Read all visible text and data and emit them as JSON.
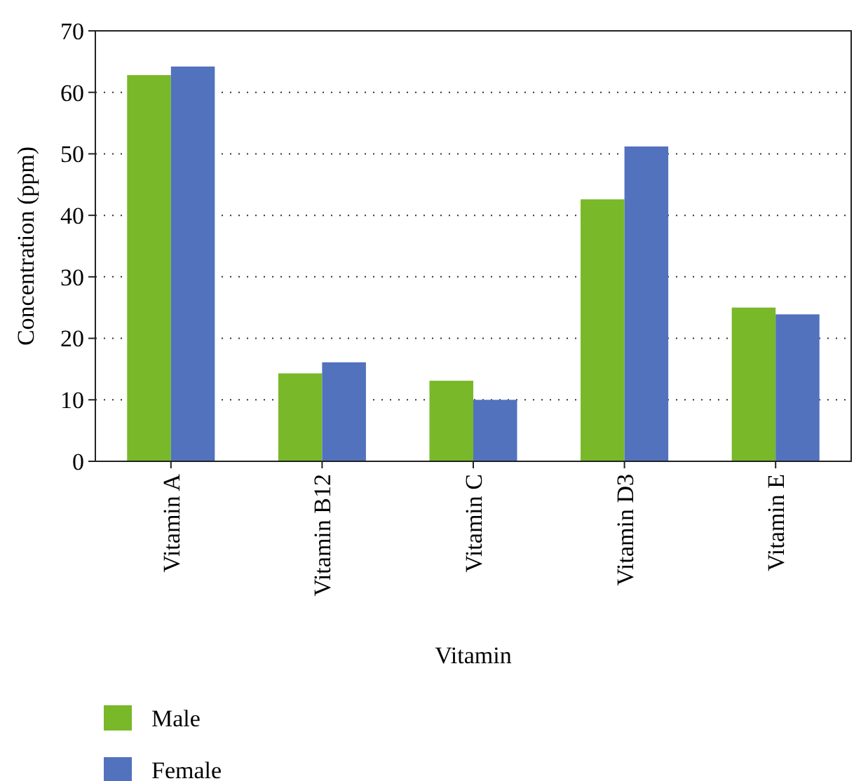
{
  "chart_data": {
    "type": "bar",
    "xlabel": "Vitamin",
    "ylabel": "Concentration (ppm)",
    "categories": [
      "Vitamin A",
      "Vitamin B12",
      "Vitamin C",
      "Vitamin D3",
      "Vitamin E"
    ],
    "series": [
      {
        "name": "Male",
        "color": "#78b829",
        "values": [
          62.8,
          14.3,
          13.1,
          42.6,
          25.0
        ]
      },
      {
        "name": "Female",
        "color": "#5272be",
        "values": [
          64.2,
          16.1,
          10.0,
          51.2,
          23.9
        ]
      }
    ],
    "ylim": [
      0,
      70
    ],
    "yticks": [
      0,
      10,
      20,
      30,
      40,
      50,
      60,
      70
    ],
    "grid": "y",
    "legend": "bottom left"
  }
}
